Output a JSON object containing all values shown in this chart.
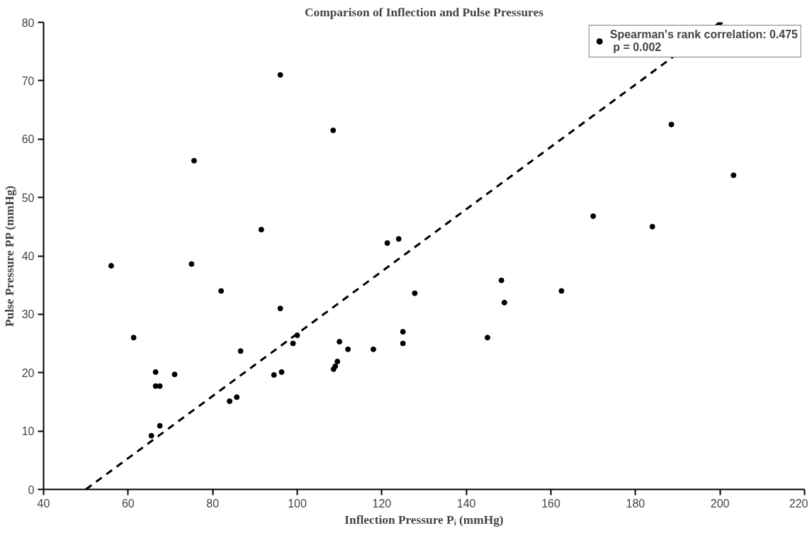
{
  "chart_data": {
    "type": "scatter",
    "title": "Comparison of Inflection and Pulse Pressures",
    "xlabel": "Inflection Pressure Pᵢ (mmHg)",
    "ylabel": "Pulse Pressure PP (mmHg)",
    "xlim": [
      40,
      220
    ],
    "ylim": [
      0,
      80
    ],
    "xticks": [
      40,
      60,
      80,
      100,
      120,
      140,
      160,
      180,
      200,
      220
    ],
    "yticks": [
      0,
      10,
      20,
      30,
      40,
      50,
      60,
      70,
      80
    ],
    "grid": false,
    "legend": "top right",
    "series": [
      {
        "name": "Spearman's rank correlation: 0.475\n p = 0.002",
        "color": "#000000",
        "marker": "circle",
        "x": [
          56,
          61.3,
          65.5,
          66.5,
          66.5,
          67.5,
          67.5,
          71,
          75,
          75.6,
          82,
          84,
          85.7,
          86.6,
          91.5,
          94.5,
          96,
          96,
          96.3,
          99,
          100,
          108.5,
          108.6,
          109,
          109.5,
          110,
          112,
          118,
          121.3,
          124,
          125,
          125,
          127.8,
          145,
          148.3,
          149,
          162.5,
          170,
          184,
          188.5,
          203.2,
          200
        ],
        "values": [
          38.3,
          26,
          9.2,
          20.1,
          17.7,
          17.7,
          10.9,
          19.7,
          38.6,
          56.3,
          34,
          15.1,
          15.8,
          23.7,
          44.5,
          19.6,
          71,
          31,
          20.1,
          25,
          26.4,
          61.5,
          20.6,
          21.1,
          21.9,
          25.3,
          24,
          24,
          42.2,
          42.9,
          27,
          25,
          33.6,
          26,
          35.8,
          32,
          34,
          46.8,
          45,
          62.5,
          53.8,
          80
        ]
      },
      {
        "type": "line",
        "line_style": "dashed",
        "color": "#000000",
        "x": [
          50,
          200
        ],
        "values": [
          0,
          80
        ]
      }
    ]
  }
}
